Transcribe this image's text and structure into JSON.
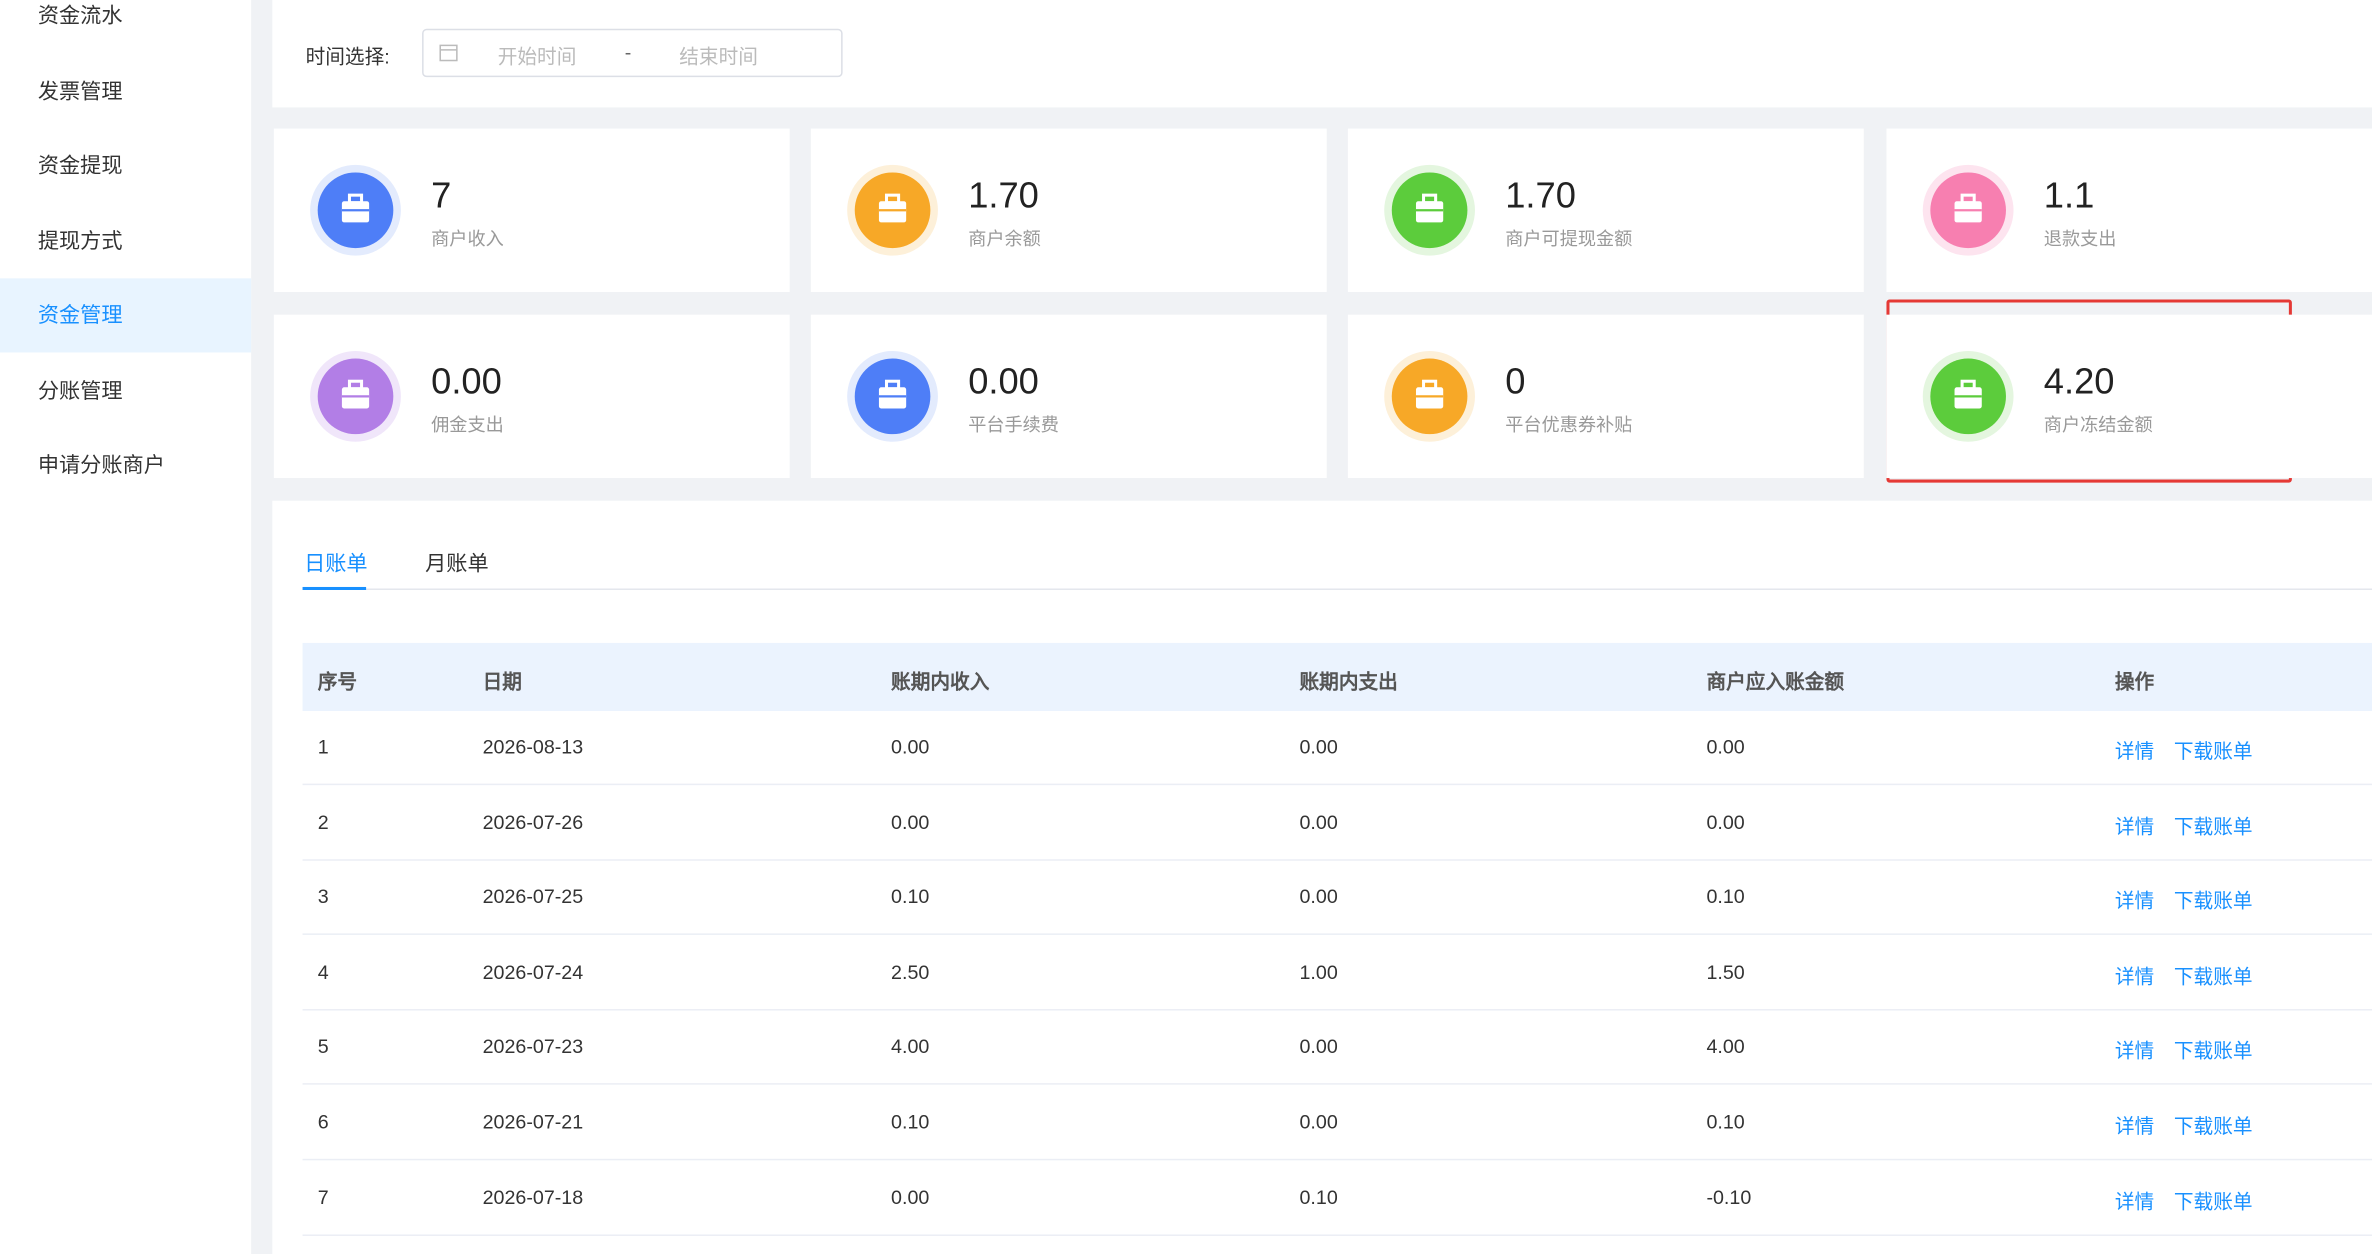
{
  "sidebar": {
    "items": [
      "资金流水",
      "发票管理",
      "资金提现",
      "提现方式",
      "资金管理",
      "分账管理",
      "申请分账商户"
    ]
  },
  "filter": {
    "label": "时间选择:",
    "start_placeholder": "开始时间",
    "separator": "-",
    "end_placeholder": "结束时间"
  },
  "stats": [
    {
      "value": "7",
      "label": "商户收入"
    },
    {
      "value": "1.70",
      "label": "商户余额"
    },
    {
      "value": "1.70",
      "label": "商户可提现金额"
    },
    {
      "value": "1.1",
      "label": "退款支出"
    },
    {
      "value": "0.00",
      "label": "佣金支出"
    },
    {
      "value": "0.00",
      "label": "平台手续费"
    },
    {
      "value": "0",
      "label": "平台优惠券补贴"
    },
    {
      "value": "4.20",
      "label": "商户冻结金额"
    }
  ],
  "tabs": [
    "日账单",
    "月账单"
  ],
  "table": {
    "headers": [
      "序号",
      "日期",
      "账期内收入",
      "账期内支出",
      "商户应入账金额",
      "操作"
    ],
    "rows": [
      [
        "1",
        "2026-08-13",
        "0.00",
        "0.00",
        "0.00"
      ],
      [
        "2",
        "2026-07-26",
        "0.00",
        "0.00",
        "0.00"
      ],
      [
        "3",
        "2026-07-25",
        "0.10",
        "0.00",
        "0.10"
      ],
      [
        "4",
        "2026-07-24",
        "2.50",
        "1.00",
        "1.50"
      ],
      [
        "5",
        "2026-07-23",
        "4.00",
        "0.00",
        "4.00"
      ],
      [
        "6",
        "2026-07-21",
        "0.10",
        "0.00",
        "0.10"
      ],
      [
        "7",
        "2026-07-18",
        "0.00",
        "0.10",
        "-0.10"
      ]
    ],
    "actions": [
      "详情",
      "下载账单"
    ]
  }
}
